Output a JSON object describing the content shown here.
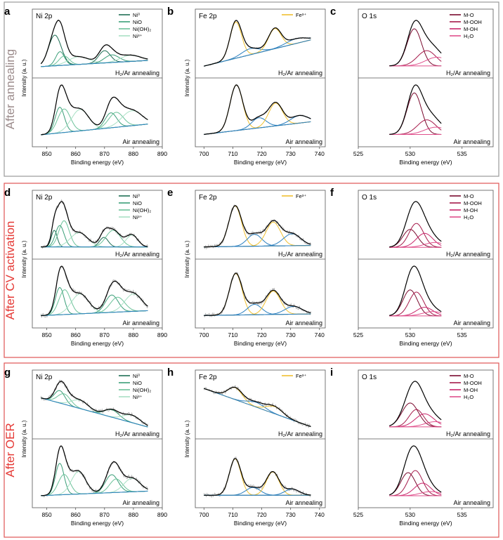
{
  "colors": {
    "gray_frame": "#9a9a9a",
    "red_frame": "#e05555",
    "gray_label": "#9a8a8a",
    "red_label": "#e53935",
    "raw": "#b3b3b3",
    "envelope": "#000000",
    "background": "#2a7fbf",
    "ni0": "#1f6f55",
    "nio": "#3a9e78",
    "niooh2": "#6cc29a",
    "ni3": "#a8e0c4",
    "fe3": "#f0c030",
    "mo": "#7a0a2e",
    "mooh": "#a51a4a",
    "moh": "#c8266a",
    "h2o": "#e0508c"
  },
  "sections": [
    {
      "label": "After annealing"
    },
    {
      "label": "After CV activation"
    },
    {
      "label": "After OER"
    }
  ],
  "columns": [
    {
      "title": "Ni 2p",
      "xlabel": "Binding energy (eV)",
      "ylabel": "Intensity (a. u.)",
      "xmin": 845,
      "xmax": 890,
      "ticks": [
        "850",
        "860",
        "870",
        "880",
        "890"
      ],
      "legend": [
        "Ni⁰",
        "NiO",
        "Ni(OH)₂",
        "Ni³⁺"
      ]
    },
    {
      "title": "Fe 2p",
      "xlabel": "Binding energy (eV)",
      "ylabel": "Intensity (a. u.)",
      "xmin": 697,
      "xmax": 742,
      "ticks": [
        "700",
        "710",
        "720",
        "730",
        "740"
      ],
      "legend": [
        "Fe³⁺"
      ]
    },
    {
      "title": "O 1s",
      "xlabel": "Binding energy (eV)",
      "ylabel": "",
      "xmin": 525,
      "xmax": 538,
      "ticks": [
        "525",
        "530",
        "535"
      ],
      "legend": [
        "M-O",
        "M-OOH",
        "M-OH",
        "H₂O"
      ]
    }
  ],
  "panels": [
    {
      "letter": "a"
    },
    {
      "letter": "b"
    },
    {
      "letter": "c"
    },
    {
      "letter": "d"
    },
    {
      "letter": "e"
    },
    {
      "letter": "f"
    },
    {
      "letter": "g"
    },
    {
      "letter": "h"
    },
    {
      "letter": "i"
    }
  ],
  "subplot_labels": {
    "top": "H₂/Ar annealing",
    "bottom": "Air annealing"
  },
  "chart_data": [
    {
      "panel": "a",
      "type": "line",
      "title": "Ni 2p",
      "xlabel": "Binding energy (eV)",
      "ylabel": "Intensity (a. u.)",
      "xlim": [
        845,
        890
      ],
      "legend": [
        "Ni⁰",
        "NiO",
        "Ni(OH)₂",
        "Ni³⁺"
      ],
      "subplots": [
        {
          "condition": "H₂/Ar annealing",
          "peaks": [
            [
              852.8,
              2.2,
              1.0,
              "ni0"
            ],
            [
              854.6,
              1.5,
              0.45,
              "nio"
            ],
            [
              856.0,
              1.8,
              0.3,
              "niooh2"
            ],
            [
              861.0,
              3.5,
              0.25,
              "ni3"
            ],
            [
              870.0,
              2.0,
              0.4,
              "ni0"
            ],
            [
              872.5,
              2.5,
              0.25,
              "nio"
            ],
            [
              879.0,
              3.5,
              0.2,
              "ni3"
            ]
          ],
          "bg": [
            0.05,
            0.25
          ]
        },
        {
          "condition": "Air annealing",
          "peaks": [
            [
              854.5,
              1.6,
              0.6,
              "nio"
            ],
            [
              856.0,
              2.2,
              0.55,
              "niooh2"
            ],
            [
              861.5,
              3.0,
              0.5,
              "ni3"
            ],
            [
              872.2,
              2.0,
              0.35,
              "nio"
            ],
            [
              874.0,
              2.5,
              0.35,
              "niooh2"
            ],
            [
              879.5,
              3.5,
              0.35,
              "ni3"
            ]
          ],
          "bg": [
            0.05,
            0.3
          ]
        }
      ]
    },
    {
      "panel": "b",
      "type": "line",
      "title": "Fe 2p",
      "xlim": [
        697,
        742
      ],
      "legend": [
        "Fe³⁺"
      ],
      "subplots": [
        {
          "condition": "H₂/Ar annealing",
          "peaks": [
            [
              711.0,
              2.0,
              0.9,
              "fe3"
            ],
            [
              716.0,
              3.0,
              0.15,
              "background"
            ],
            [
              724.5,
              2.2,
              0.5,
              "fe3"
            ],
            [
              732.0,
              3.5,
              0.12,
              "background"
            ]
          ],
          "bg": [
            0.05,
            0.7
          ]
        },
        {
          "condition": "Air annealing",
          "peaks": [
            [
              711.2,
              2.2,
              0.9,
              "fe3"
            ],
            [
              719.0,
              2.5,
              0.2,
              "background"
            ],
            [
              724.8,
              2.4,
              0.45,
              "fe3"
            ],
            [
              733.0,
              3.0,
              0.15,
              "background"
            ]
          ],
          "bg": [
            0.05,
            0.3
          ]
        }
      ]
    },
    {
      "panel": "c",
      "type": "line",
      "title": "O 1s",
      "xlim": [
        525,
        538
      ],
      "legend": [
        "M-O",
        "M-OOH",
        "M-OH",
        "H₂O"
      ],
      "subplots": [
        {
          "condition": "H₂/Ar annealing",
          "peaks": [
            [
              530.4,
              0.7,
              0.85,
              "mo"
            ],
            [
              531.6,
              0.9,
              0.35,
              "mooh"
            ],
            [
              532.6,
              1.1,
              0.2,
              "h2o"
            ]
          ],
          "bg": [
            0.05,
            0.05
          ]
        },
        {
          "condition": "Air annealing",
          "peaks": [
            [
              530.4,
              0.7,
              0.85,
              "mo"
            ],
            [
              531.6,
              0.9,
              0.3,
              "mooh"
            ],
            [
              532.5,
              1.1,
              0.15,
              "h2o"
            ]
          ],
          "bg": [
            0.05,
            0.05
          ]
        }
      ]
    },
    {
      "panel": "d",
      "type": "line",
      "title": "Ni 2p",
      "xlim": [
        845,
        890
      ],
      "legend": [
        "Ni⁰",
        "NiO",
        "Ni(OH)₂",
        "Ni³⁺"
      ],
      "subplots": [
        {
          "condition": "H₂/Ar annealing",
          "peaks": [
            [
              852.6,
              1.0,
              0.35,
              "ni0"
            ],
            [
              854.5,
              1.5,
              0.45,
              "nio"
            ],
            [
              856.0,
              1.8,
              0.55,
              "niooh2"
            ],
            [
              861.2,
              3.0,
              0.3,
              "ni3"
            ],
            [
              869.8,
              1.5,
              0.2,
              "ni0"
            ],
            [
              873.0,
              2.5,
              0.35,
              "niooh2"
            ],
            [
              879.5,
              2.0,
              0.25,
              "ni3"
            ]
          ],
          "bg": [
            0.05,
            0.05
          ]
        },
        {
          "condition": "Air annealing",
          "peaks": [
            [
              854.5,
              1.5,
              0.55,
              "nio"
            ],
            [
              856.2,
              2.0,
              0.5,
              "niooh2"
            ],
            [
              861.5,
              3.0,
              0.4,
              "ni3"
            ],
            [
              872.5,
              2.2,
              0.35,
              "nio"
            ],
            [
              874.5,
              2.5,
              0.3,
              "niooh2"
            ],
            [
              880.0,
              3.0,
              0.35,
              "ni3"
            ]
          ],
          "bg": [
            0.05,
            0.15
          ]
        }
      ]
    },
    {
      "panel": "e",
      "type": "line",
      "title": "Fe 2p",
      "xlim": [
        697,
        742
      ],
      "legend": [
        "Fe³⁺"
      ],
      "subplots": [
        {
          "condition": "H₂/Ar annealing",
          "peaks": [
            [
              710.8,
              2.2,
              0.85,
              "fe3"
            ],
            [
              717.5,
              2.5,
              0.25,
              "background"
            ],
            [
              724.0,
              2.5,
              0.5,
              "fe3"
            ],
            [
              730.5,
              3.0,
              0.25,
              "background"
            ]
          ],
          "bg": [
            0.05,
            0.08
          ]
        },
        {
          "condition": "Air annealing",
          "peaks": [
            [
              711.0,
              2.2,
              0.8,
              "fe3"
            ],
            [
              717.5,
              2.5,
              0.2,
              "background"
            ],
            [
              724.0,
              2.5,
              0.45,
              "fe3"
            ],
            [
              731.0,
              3.0,
              0.15,
              "background"
            ]
          ],
          "bg": [
            0.05,
            0.08
          ]
        }
      ]
    },
    {
      "panel": "f",
      "type": "line",
      "title": "O 1s",
      "xlim": [
        525,
        538
      ],
      "legend": [
        "M-O",
        "M-OOH",
        "M-OH",
        "H₂O"
      ],
      "subplots": [
        {
          "condition": "H₂/Ar annealing",
          "peaks": [
            [
              530.0,
              0.7,
              0.45,
              "mo"
            ],
            [
              530.6,
              0.7,
              0.6,
              "mooh"
            ],
            [
              531.4,
              0.8,
              0.35,
              "moh"
            ],
            [
              532.4,
              1.0,
              0.12,
              "h2o"
            ]
          ],
          "bg": [
            0.05,
            0.05
          ]
        },
        {
          "condition": "Air annealing",
          "peaks": [
            [
              530.0,
              0.7,
              0.6,
              "mo"
            ],
            [
              530.6,
              0.7,
              0.55,
              "mooh"
            ],
            [
              531.4,
              0.8,
              0.2,
              "moh"
            ],
            [
              532.2,
              1.0,
              0.1,
              "h2o"
            ]
          ],
          "bg": [
            0.05,
            0.05
          ]
        }
      ]
    },
    {
      "panel": "g",
      "type": "line",
      "title": "Ni 2p",
      "xlim": [
        845,
        890
      ],
      "legend": [
        "Ni⁰",
        "NiO",
        "Ni(OH)₂",
        "Ni³⁺"
      ],
      "subplots": [
        {
          "condition": "H₂/Ar annealing",
          "peaks": [
            [
              854.5,
              1.8,
              0.3,
              "nio"
            ],
            [
              856.0,
              2.2,
              0.25,
              "niooh2"
            ],
            [
              861.5,
              3.0,
              0.2,
              "ni3"
            ],
            [
              872.5,
              2.5,
              0.18,
              "nio"
            ],
            [
              879.5,
              3.0,
              0.18,
              "ni3"
            ]
          ],
          "bg": [
            0.75,
            0.05
          ]
        },
        {
          "condition": "Air annealing",
          "peaks": [
            [
              854.5,
              1.5,
              0.7,
              "nio"
            ],
            [
              856.0,
              2.0,
              0.45,
              "niooh2"
            ],
            [
              861.0,
              2.5,
              0.5,
              "ni3"
            ],
            [
              872.5,
              2.2,
              0.4,
              "nio"
            ],
            [
              874.0,
              2.2,
              0.3,
              "niooh2"
            ],
            [
              879.5,
              2.8,
              0.3,
              "ni3"
            ]
          ],
          "bg": [
            0.05,
            0.15
          ]
        }
      ]
    },
    {
      "panel": "h",
      "type": "line",
      "title": "Fe 2p",
      "xlim": [
        697,
        742
      ],
      "legend": [
        "Fe³⁺"
      ],
      "subplots": [
        {
          "condition": "H₂/Ar annealing",
          "peaks": [
            [
              710.8,
              2.5,
              0.25,
              "fe3"
            ],
            [
              718.0,
              3.0,
              0.1,
              "background"
            ],
            [
              724.5,
              2.8,
              0.15,
              "fe3"
            ]
          ],
          "bg": [
            0.85,
            0.05
          ]
        },
        {
          "condition": "Air annealing",
          "peaks": [
            [
              710.8,
              2.0,
              0.7,
              "fe3"
            ],
            [
              717.0,
              2.5,
              0.15,
              "background"
            ],
            [
              723.8,
              2.2,
              0.45,
              "fe3"
            ],
            [
              730.5,
              2.5,
              0.12,
              "background"
            ]
          ],
          "bg": [
            0.05,
            0.05
          ]
        }
      ]
    },
    {
      "panel": "i",
      "type": "line",
      "title": "O 1s",
      "xlim": [
        525,
        538
      ],
      "legend": [
        "M-O",
        "M-OOH",
        "M-OH",
        "H₂O"
      ],
      "subplots": [
        {
          "condition": "H₂/Ar annealing",
          "peaks": [
            [
              530.0,
              0.8,
              0.55,
              "mo"
            ],
            [
              530.6,
              0.7,
              0.4,
              "mooh"
            ],
            [
              531.4,
              0.9,
              0.3,
              "moh"
            ],
            [
              532.4,
              1.0,
              0.12,
              "h2o"
            ]
          ],
          "bg": [
            0.05,
            0.05
          ]
        },
        {
          "condition": "Air annealing",
          "peaks": [
            [
              529.8,
              0.7,
              0.55,
              "mo"
            ],
            [
              530.5,
              0.7,
              0.6,
              "mooh"
            ],
            [
              531.2,
              0.8,
              0.3,
              "moh"
            ],
            [
              532.0,
              1.0,
              0.1,
              "h2o"
            ]
          ],
          "bg": [
            0.05,
            0.05
          ]
        }
      ]
    }
  ]
}
